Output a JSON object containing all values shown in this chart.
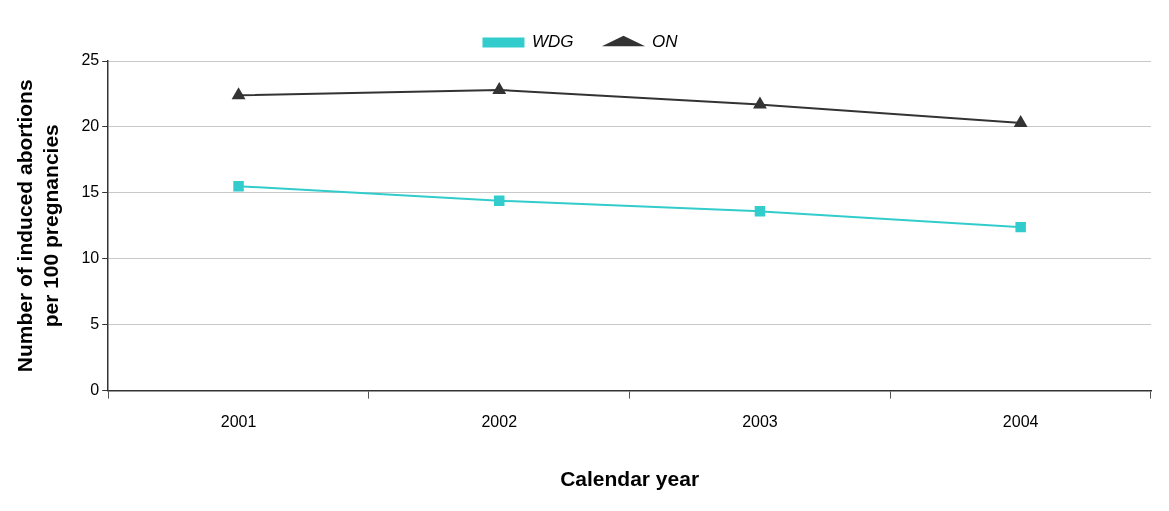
{
  "chart_data": {
    "type": "line",
    "xlabel": "Calendar year",
    "ylabel": "Number of induced abortions per 100 pregnancies",
    "categories": [
      "2001",
      "2002",
      "2003",
      "2004"
    ],
    "series": [
      {
        "name": "WDG",
        "color": "#33cccc",
        "values": [
          15.5,
          14.4,
          13.6,
          12.4
        ],
        "marker": "square"
      },
      {
        "name": "ON",
        "color": "#333333",
        "values": [
          22.4,
          22.8,
          21.7,
          20.3
        ],
        "marker": "triangle"
      }
    ],
    "ylim": [
      0,
      25
    ],
    "yticks": [
      0,
      5,
      10,
      15,
      20,
      25
    ],
    "grid": "y",
    "legend": "top",
    "line_style": "solid"
  }
}
